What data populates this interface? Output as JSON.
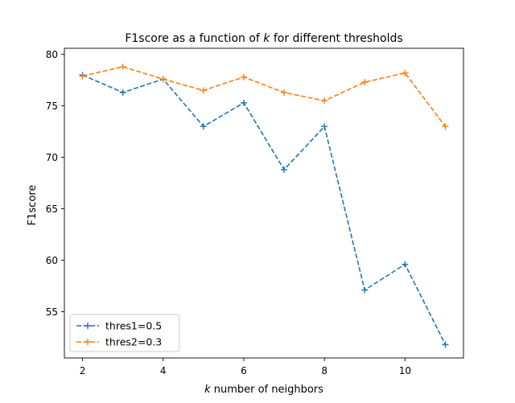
{
  "chart_data": {
    "type": "line",
    "title_prefix": "F1score as a function of ",
    "title_var": "k",
    "title_suffix": " for different thresholds",
    "xlabel_var": "k",
    "xlabel_rest": " number of neighbors",
    "ylabel": "F1score",
    "x": [
      2,
      3,
      4,
      5,
      6,
      7,
      8,
      9,
      10,
      11
    ],
    "xlim": [
      1.55,
      11.45
    ],
    "ylim": [
      50.5,
      80.6
    ],
    "xticks": [
      2,
      4,
      6,
      8,
      10
    ],
    "yticks": [
      55,
      60,
      65,
      70,
      75,
      80
    ],
    "grid": false,
    "legend_position": "lower-left",
    "series": [
      {
        "name": "thres1=0.5",
        "color": "#1f77b4",
        "linestyle": "dashed",
        "marker": "plus",
        "values": [
          78.0,
          76.3,
          77.6,
          73.0,
          75.3,
          68.8,
          73.0,
          57.1,
          59.6,
          51.8
        ]
      },
      {
        "name": "thres2=0.3",
        "color": "#ff7f0e",
        "linestyle": "dashed",
        "marker": "plus",
        "values": [
          77.9,
          78.8,
          77.6,
          76.5,
          77.8,
          76.3,
          75.5,
          77.3,
          78.2,
          73.0
        ]
      }
    ]
  }
}
